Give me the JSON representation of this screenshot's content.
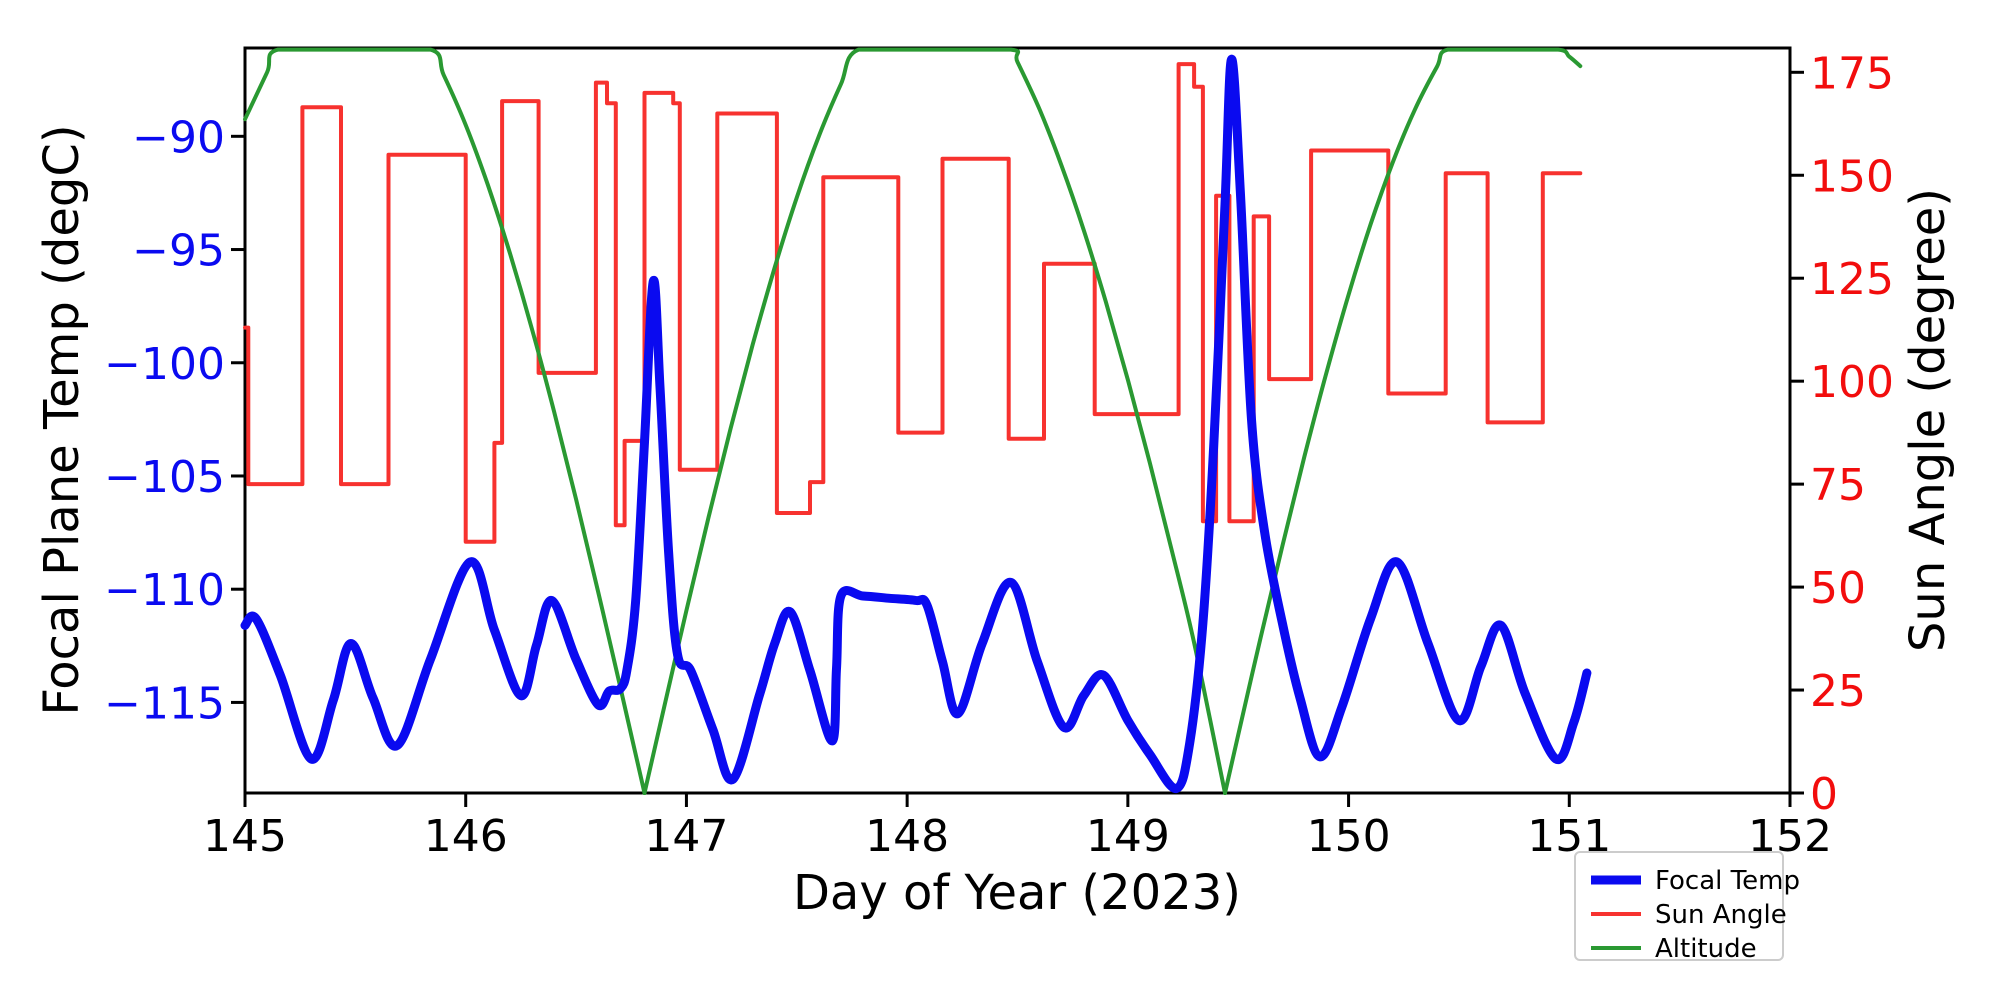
{
  "chart_data": {
    "type": "line",
    "title": "",
    "xlabel": "Day of Year (2023)",
    "ylabel_left": "Focal Plane Temp (degC)",
    "ylabel_right": "Sun Angle (degree)",
    "xlim": [
      145,
      152
    ],
    "ylim_left": [
      -119.0,
      -86.1
    ],
    "ylim_right": [
      0,
      180.9
    ],
    "grid": false,
    "x_ticks": {
      "values": [
        145,
        146,
        147,
        148,
        149,
        150,
        151,
        152
      ],
      "labels": [
        "145",
        "146",
        "147",
        "148",
        "149",
        "150",
        "151",
        "152"
      ],
      "color": "#000000"
    },
    "y_ticks_left": {
      "values": [
        -90,
        -95,
        -100,
        -105,
        -110,
        -115
      ],
      "labels": [
        "−90",
        "−95",
        "−100",
        "−105",
        "−110",
        "−115"
      ],
      "color": "#0a0af0"
    },
    "y_ticks_right": {
      "values": [
        0,
        25,
        50,
        75,
        100,
        125,
        150,
        175
      ],
      "labels": [
        "0",
        "25",
        "50",
        "75",
        "100",
        "125",
        "150",
        "175"
      ],
      "color": "#f20d0d"
    },
    "legend": {
      "position": "lower-right-below-axis",
      "border_color": "#cccccc",
      "entries": [
        {
          "label": "Focal Temp",
          "color": "#0a0af0",
          "linewidth": 9
        },
        {
          "label": "Sun Angle",
          "color": "#f7322f",
          "linewidth": 4
        },
        {
          "label": "Altitude",
          "color": "#2a9932",
          "linewidth": 4
        }
      ]
    },
    "series": [
      {
        "name": "Focal Temp",
        "axis": "left",
        "style": "smooth",
        "color": "#0a0af0",
        "linewidth": 9,
        "points": [
          [
            145.0,
            -111.6
          ],
          [
            145.05,
            -111.3
          ],
          [
            145.16,
            -113.8
          ],
          [
            145.3,
            -117.5
          ],
          [
            145.4,
            -114.9
          ],
          [
            145.48,
            -112.4
          ],
          [
            145.58,
            -114.8
          ],
          [
            145.69,
            -116.9
          ],
          [
            145.84,
            -113.1
          ],
          [
            146.02,
            -108.8
          ],
          [
            146.13,
            -111.8
          ],
          [
            146.25,
            -114.7
          ],
          [
            146.32,
            -112.5
          ],
          [
            146.39,
            -110.5
          ],
          [
            146.5,
            -113.1
          ],
          [
            146.6,
            -115.1
          ],
          [
            146.65,
            -114.5
          ],
          [
            146.7,
            -114.4
          ],
          [
            146.73,
            -113.6
          ],
          [
            146.77,
            -110.5
          ],
          [
            146.81,
            -103.5
          ],
          [
            146.85,
            -96.4
          ],
          [
            146.88,
            -101.0
          ],
          [
            146.92,
            -108.5
          ],
          [
            146.96,
            -112.9
          ],
          [
            147.02,
            -113.6
          ],
          [
            147.12,
            -116.2
          ],
          [
            147.21,
            -118.4
          ],
          [
            147.33,
            -114.7
          ],
          [
            147.4,
            -112.4
          ],
          [
            147.47,
            -111.0
          ],
          [
            147.56,
            -113.6
          ],
          [
            147.66,
            -116.7
          ],
          [
            147.68,
            -113.5
          ],
          [
            147.7,
            -110.3
          ],
          [
            147.8,
            -110.3
          ],
          [
            147.92,
            -110.4
          ],
          [
            148.04,
            -110.5
          ],
          [
            148.09,
            -110.7
          ],
          [
            148.16,
            -113.2
          ],
          [
            148.23,
            -115.5
          ],
          [
            148.34,
            -112.4
          ],
          [
            148.47,
            -109.7
          ],
          [
            148.59,
            -113.2
          ],
          [
            148.71,
            -116.1
          ],
          [
            148.8,
            -114.7
          ],
          [
            148.89,
            -113.8
          ],
          [
            149.0,
            -115.8
          ],
          [
            149.1,
            -117.3
          ],
          [
            149.22,
            -118.8
          ],
          [
            149.28,
            -116.8
          ],
          [
            149.34,
            -111.5
          ],
          [
            149.39,
            -103.5
          ],
          [
            149.44,
            -93.0
          ],
          [
            149.47,
            -86.6
          ],
          [
            149.51,
            -92.5
          ],
          [
            149.56,
            -102.5
          ],
          [
            149.62,
            -107.5
          ],
          [
            149.7,
            -111.5
          ],
          [
            149.78,
            -114.8
          ],
          [
            149.87,
            -117.4
          ],
          [
            149.97,
            -115.2
          ],
          [
            150.1,
            -111.3
          ],
          [
            150.22,
            -108.8
          ],
          [
            150.36,
            -112.4
          ],
          [
            150.5,
            -115.8
          ],
          [
            150.6,
            -113.4
          ],
          [
            150.69,
            -111.6
          ],
          [
            150.8,
            -114.6
          ],
          [
            150.94,
            -117.5
          ],
          [
            151.02,
            -115.9
          ],
          [
            151.08,
            -113.7
          ]
        ]
      },
      {
        "name": "Sun Angle",
        "axis": "right",
        "style": "steps",
        "color": "#f7322f",
        "linewidth": 4,
        "segments": [
          [
            145.0,
            145.015,
            113
          ],
          [
            145.015,
            145.26,
            75
          ],
          [
            145.26,
            145.435,
            166.5
          ],
          [
            145.435,
            145.65,
            75
          ],
          [
            145.65,
            146.0,
            155
          ],
          [
            146.0,
            146.13,
            61
          ],
          [
            146.13,
            146.165,
            85
          ],
          [
            146.165,
            146.33,
            168
          ],
          [
            146.33,
            146.59,
            102
          ],
          [
            146.59,
            146.64,
            172.5
          ],
          [
            146.64,
            146.68,
            167.5
          ],
          [
            146.68,
            146.72,
            65
          ],
          [
            146.72,
            146.81,
            85.5
          ],
          [
            146.81,
            146.94,
            170
          ],
          [
            146.94,
            146.97,
            167.5
          ],
          [
            146.97,
            147.14,
            78.5
          ],
          [
            147.14,
            147.41,
            165
          ],
          [
            147.41,
            147.56,
            68
          ],
          [
            147.56,
            147.62,
            75.5
          ],
          [
            147.62,
            147.96,
            149.5
          ],
          [
            147.96,
            148.16,
            87.5
          ],
          [
            148.16,
            148.46,
            154
          ],
          [
            148.46,
            148.62,
            86
          ],
          [
            148.62,
            148.85,
            128.5
          ],
          [
            148.85,
            149.23,
            92
          ],
          [
            149.23,
            149.3,
            177
          ],
          [
            149.3,
            149.34,
            171.5
          ],
          [
            149.34,
            149.4,
            66
          ],
          [
            149.4,
            149.46,
            145
          ],
          [
            149.46,
            149.57,
            66
          ],
          [
            149.57,
            149.64,
            140
          ],
          [
            149.64,
            149.83,
            100.5
          ],
          [
            149.83,
            150.18,
            156
          ],
          [
            150.18,
            150.44,
            97
          ],
          [
            150.44,
            150.63,
            150.5
          ],
          [
            150.63,
            150.88,
            90
          ],
          [
            150.88,
            151.05,
            150.5
          ]
        ]
      },
      {
        "name": "Altitude",
        "axis": "right",
        "style": "smooth-arcs",
        "color": "#2a9932",
        "linewidth": 4,
        "arcs": [
          [
            [
              145.0,
              163.6
            ],
            [
              145.1,
              175.0
            ],
            [
              145.15,
              180.5
            ],
            [
              145.5,
              180.5
            ],
            [
              145.84,
              180.5
            ],
            [
              145.9,
              174.4
            ],
            [
              146.0,
              162.2
            ],
            [
              146.1,
              147.7
            ],
            [
              146.2,
              131.1
            ],
            [
              146.3,
              112.7
            ],
            [
              146.4,
              92.7
            ],
            [
              146.5,
              71.3
            ],
            [
              146.6,
              48.9
            ],
            [
              146.7,
              25.8
            ],
            [
              146.81,
              0.0
            ]
          ],
          [
            [
              146.81,
              0.0
            ],
            [
              146.9,
              21.1
            ],
            [
              147.0,
              44.3
            ],
            [
              147.1,
              66.9
            ],
            [
              147.2,
              88.5
            ],
            [
              147.3,
              108.8
            ],
            [
              147.4,
              127.6
            ],
            [
              147.5,
              144.6
            ],
            [
              147.6,
              159.5
            ],
            [
              147.7,
              172.1
            ],
            [
              147.78,
              180.5
            ],
            [
              148.1,
              180.5
            ],
            [
              148.47,
              180.5
            ],
            [
              148.5,
              177.5
            ],
            [
              148.6,
              166.0
            ],
            [
              148.7,
              152.3
            ],
            [
              148.8,
              136.7
            ],
            [
              148.9,
              119.3
            ],
            [
              149.0,
              100.3
            ],
            [
              149.1,
              80.1
            ],
            [
              149.2,
              58.7
            ],
            [
              149.3,
              36.5
            ],
            [
              149.44,
              0.0
            ]
          ],
          [
            [
              149.44,
              0.0
            ],
            [
              149.5,
              14.1
            ],
            [
              149.6,
              37.4
            ],
            [
              149.7,
              60.0
            ],
            [
              149.8,
              81.7
            ],
            [
              149.9,
              102.1
            ],
            [
              150.0,
              121.0
            ],
            [
              150.1,
              138.1
            ],
            [
              150.2,
              153.1
            ],
            [
              150.3,
              165.9
            ],
            [
              150.4,
              176.3
            ],
            [
              150.45,
              180.5
            ],
            [
              150.7,
              180.5
            ],
            [
              150.95,
              180.5
            ],
            [
              151.0,
              178.8
            ],
            [
              151.05,
              176.5
            ]
          ]
        ]
      }
    ]
  }
}
